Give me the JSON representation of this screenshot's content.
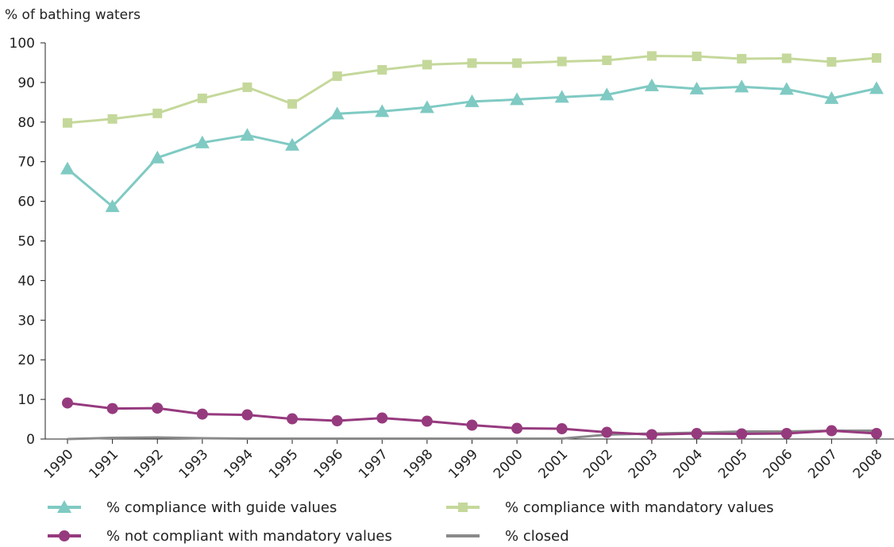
{
  "chart_data": {
    "type": "line",
    "ylabel": "% of bathing waters",
    "xlabel": "",
    "ylim": [
      0,
      100
    ],
    "yticks": [
      0,
      10,
      20,
      30,
      40,
      50,
      60,
      70,
      80,
      90,
      100
    ],
    "categories": [
      "1990",
      "1991",
      "1992",
      "1993",
      "1994",
      "1995",
      "1996",
      "1997",
      "1998",
      "1999",
      "2000",
      "2001",
      "2002",
      "2003",
      "2004",
      "2005",
      "2006",
      "2007",
      "2008"
    ],
    "grid": false,
    "legend_position": "bottom",
    "series": [
      {
        "name": "% compliance with guide values",
        "color": "#7fcac3",
        "marker": "triangle",
        "values": [
          68.2,
          58.7,
          71.0,
          74.8,
          76.7,
          74.2,
          82.1,
          82.7,
          83.7,
          85.2,
          85.7,
          86.3,
          86.9,
          89.2,
          88.4,
          88.9,
          88.3,
          86.0,
          88.5
        ]
      },
      {
        "name": "% compliance with mandatory values",
        "color": "#c5d89b",
        "marker": "square",
        "values": [
          79.8,
          80.8,
          82.2,
          86.0,
          88.8,
          84.6,
          91.6,
          93.2,
          94.5,
          94.9,
          94.9,
          95.3,
          95.6,
          96.7,
          96.6,
          96.0,
          96.1,
          95.2,
          96.2
        ]
      },
      {
        "name": "% not compliant with mandatory values",
        "color": "#963a7e",
        "marker": "circle",
        "values": [
          9.1,
          7.7,
          7.8,
          6.3,
          6.1,
          5.1,
          4.6,
          5.3,
          4.5,
          3.5,
          2.7,
          2.6,
          1.7,
          1.1,
          1.4,
          1.3,
          1.4,
          2.1,
          1.4
        ]
      },
      {
        "name": "% closed",
        "color": "#8a8a8a",
        "marker": "none",
        "values": [
          0.0,
          0.3,
          0.4,
          0.2,
          0.1,
          0.1,
          0.1,
          0.1,
          0.1,
          0.1,
          0.1,
          0.1,
          1.1,
          1.4,
          1.6,
          1.9,
          1.9,
          2.1,
          2.1
        ]
      }
    ]
  }
}
